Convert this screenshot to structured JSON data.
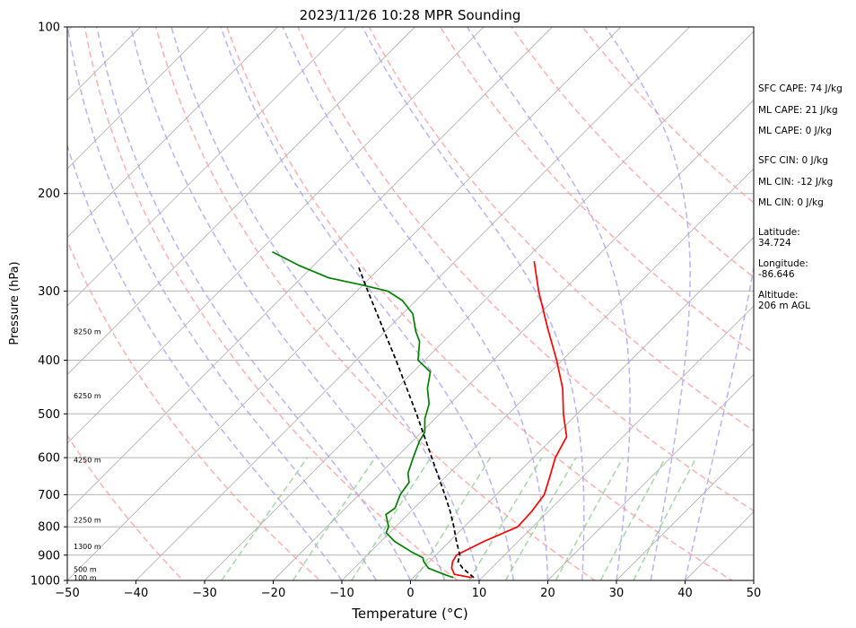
{
  "chart_data": {
    "type": "skew-t log-p sounding",
    "title": "2023/11/26 10:28 MPR Sounding",
    "xlabel": "Temperature (°C)",
    "ylabel": "Pressure (hPa)",
    "xlim": [
      -50,
      50
    ],
    "ylim": [
      1000,
      100
    ],
    "y_scale": "log",
    "x_ticks": [
      -50,
      -40,
      -30,
      -20,
      -10,
      0,
      10,
      20,
      30,
      40,
      50
    ],
    "x_tick_labels": [
      "−50",
      "−40",
      "−30",
      "−20",
      "−10",
      "0",
      "10",
      "20",
      "30",
      "40",
      "50"
    ],
    "y_ticks": [
      1000,
      900,
      800,
      700,
      600,
      500,
      400,
      300,
      200,
      100
    ],
    "y_tick_labels": [
      "1000",
      "900",
      "800",
      "700",
      "600",
      "500",
      "400",
      "300",
      "200",
      "100"
    ],
    "grid": true,
    "isotherm_step_c": 10,
    "dry_adiabats_theta_k": [
      240,
      260,
      280,
      300,
      320,
      340,
      360,
      380,
      400,
      420
    ],
    "moist_adiabats_theta_w_c": [
      -10,
      -5,
      0,
      5,
      10,
      15,
      20,
      25,
      30,
      35,
      40
    ],
    "mixing_ratio_lines_gkg": [
      0.4,
      1,
      2,
      4,
      7,
      10,
      16,
      24,
      32
    ],
    "series": [
      {
        "color": "#ff0000",
        "points": [
          [
            988,
            8.5
          ],
          [
            975,
            5.5
          ],
          [
            950,
            4.2
          ],
          [
            925,
            3.4
          ],
          [
            900,
            3.0
          ],
          [
            850,
            5.0
          ],
          [
            800,
            7.8
          ],
          [
            750,
            7.6
          ],
          [
            700,
            7.0
          ],
          [
            650,
            5.2
          ],
          [
            600,
            3.2
          ],
          [
            550,
            1.8
          ],
          [
            500,
            -2.0
          ],
          [
            450,
            -5.8
          ],
          [
            400,
            -10.8
          ],
          [
            350,
            -16.8
          ],
          [
            300,
            -23.5
          ],
          [
            265,
            -28.5
          ]
        ]
      },
      {
        "color": "#008000",
        "points": [
          [
            988,
            5.8
          ],
          [
            975,
            4.0
          ],
          [
            950,
            0.8
          ],
          [
            925,
            -0.8
          ],
          [
            910,
            -1.5
          ],
          [
            890,
            -3.8
          ],
          [
            850,
            -8.0
          ],
          [
            820,
            -10.5
          ],
          [
            800,
            -11.0
          ],
          [
            760,
            -13.2
          ],
          [
            740,
            -12.8
          ],
          [
            700,
            -14.0
          ],
          [
            665,
            -14.5
          ],
          [
            640,
            -16.0
          ],
          [
            600,
            -17.5
          ],
          [
            560,
            -19.0
          ],
          [
            540,
            -19.5
          ],
          [
            510,
            -21.5
          ],
          [
            480,
            -23.0
          ],
          [
            450,
            -25.5
          ],
          [
            420,
            -27.5
          ],
          [
            400,
            -31.0
          ],
          [
            370,
            -33.5
          ],
          [
            355,
            -35.5
          ],
          [
            330,
            -38.5
          ],
          [
            312,
            -42.0
          ],
          [
            300,
            -45.5
          ],
          [
            292,
            -50.5
          ],
          [
            284,
            -56.0
          ],
          [
            270,
            -62.0
          ],
          [
            255,
            -68.0
          ]
        ]
      },
      {
        "color": "#000000",
        "style": "dashed",
        "points": [
          [
            988,
            8.8
          ],
          [
            950,
            5.8
          ],
          [
            925,
            4.2
          ],
          [
            900,
            3.5
          ],
          [
            850,
            1.0
          ],
          [
            800,
            -1.5
          ],
          [
            750,
            -4.3
          ],
          [
            700,
            -7.5
          ],
          [
            650,
            -11.0
          ],
          [
            600,
            -14.8
          ],
          [
            550,
            -18.9
          ],
          [
            500,
            -23.4
          ],
          [
            450,
            -28.5
          ],
          [
            400,
            -34.2
          ],
          [
            350,
            -40.8
          ],
          [
            300,
            -48.4
          ],
          [
            270,
            -53.5
          ]
        ]
      }
    ],
    "height_labels": [
      {
        "text": "100 m",
        "p": 988
      },
      {
        "text": "500 m",
        "p": 955
      },
      {
        "text": "1300 m",
        "p": 868
      },
      {
        "text": "2250 m",
        "p": 777
      },
      {
        "text": "4250 m",
        "p": 605
      },
      {
        "text": "6250 m",
        "p": 464
      },
      {
        "text": "8250 m",
        "p": 355
      }
    ],
    "annotations": {
      "sfc_cape": "SFC CAPE: 74 J/kg",
      "ml_cape_1": "ML CAPE: 21 J/kg",
      "ml_cape_2": "ML CAPE: 0 J/kg",
      "sfc_cin": "SFC CIN: 0 J/kg",
      "ml_cin_1": "ML CIN: -12 J/kg",
      "ml_cin_2": "ML CIN: 0 J/kg",
      "latitude_label": "Latitude:",
      "latitude_value": "34.724",
      "longitude_label": "Longitude:",
      "longitude_value": "-86.646",
      "altitude_label": "Altitude:",
      "altitude_value": "206 m AGL"
    },
    "colors": {
      "temperature": "#ff0000",
      "dewpoint": "#008000",
      "parcel": "#000000",
      "dry_adiabat": "#ff9b9b",
      "moist_adiabat": "#a6a0f5",
      "mixing_ratio": "#8fcc8f",
      "grid": "#b4b4b4"
    }
  }
}
